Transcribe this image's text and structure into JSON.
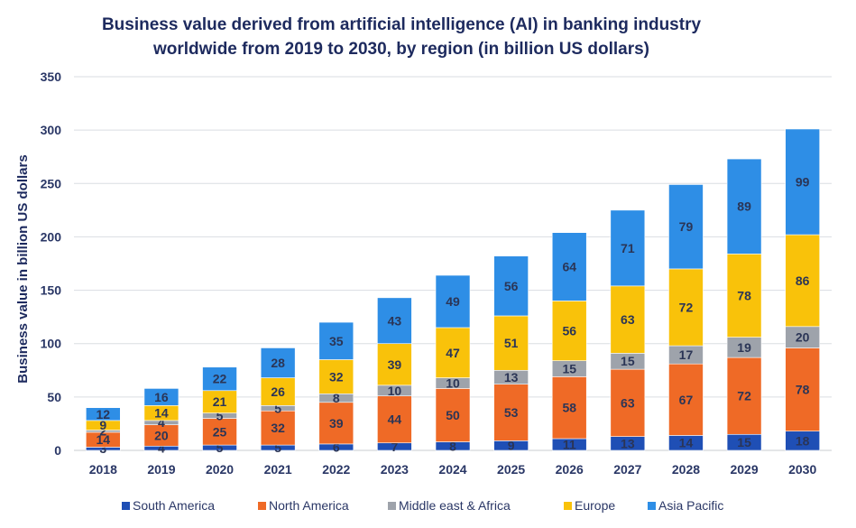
{
  "chart_data": {
    "type": "bar",
    "stacked": true,
    "title": "Business value derived from artificial intelligence (AI) in banking industry worldwide from 2019  to 2030,  by region (in billion US dollars)",
    "title_lines": [
      "Business value derived from artificial intelligence (AI) in banking industry",
      "worldwide from 2019  to 2030,  by region (in billion US dollars)"
    ],
    "xlabel": "",
    "ylabel": "Business value in billion US dollars",
    "ylim": [
      0,
      350
    ],
    "yticks": [
      0,
      50,
      100,
      150,
      200,
      250,
      300,
      350
    ],
    "grid": true,
    "legend": "bottom",
    "categories": [
      "2018",
      "2019",
      "2020",
      "2021",
      "2022",
      "2023",
      "2024",
      "2025",
      "2026",
      "2027",
      "2028",
      "2029",
      "2030"
    ],
    "series": [
      {
        "name": "South America",
        "color": "#1f4fb5",
        "values": [
          3,
          4,
          5,
          5,
          6,
          7,
          8,
          9,
          11,
          13,
          14,
          15,
          18
        ]
      },
      {
        "name": "North America",
        "color": "#ef6a26",
        "values": [
          14,
          20,
          25,
          32,
          39,
          44,
          50,
          53,
          58,
          63,
          67,
          72,
          78
        ]
      },
      {
        "name": "Middle east & Africa",
        "color": "#9ea3ab",
        "values": [
          2,
          4,
          5,
          5,
          8,
          10,
          10,
          13,
          15,
          15,
          17,
          19,
          20
        ]
      },
      {
        "name": "Europe",
        "color": "#f9c20a",
        "values": [
          9,
          14,
          21,
          26,
          32,
          39,
          47,
          51,
          56,
          63,
          72,
          78,
          86
        ]
      },
      {
        "name": "Asia Pacific",
        "color": "#2e8ee6",
        "values": [
          12,
          16,
          22,
          28,
          35,
          43,
          49,
          56,
          64,
          71,
          79,
          89,
          99
        ]
      }
    ]
  }
}
